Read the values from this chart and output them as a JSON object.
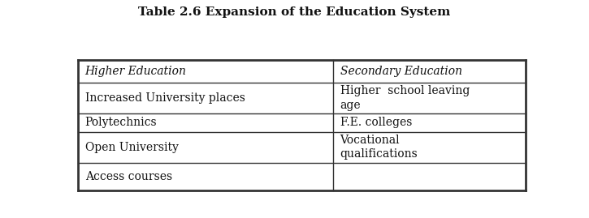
{
  "title": "Table 2.6 Expansion of the Education System",
  "title_fontsize": 11,
  "title_fontweight": "bold",
  "col1_header": "Higher Education",
  "col2_header": "Secondary Education",
  "header_fontsize": 10,
  "rows": [
    [
      "Increased University places",
      "Higher  school leaving\nage"
    ],
    [
      "Polytechnics",
      "F.E. colleges"
    ],
    [
      "Open University",
      "Vocational\nqualifications"
    ],
    [
      "Access courses",
      ""
    ]
  ],
  "cell_fontsize": 10,
  "col_split": 0.57,
  "background_color": "#ffffff",
  "line_color": "#333333",
  "text_color": "#111111",
  "outer_border_lw": 2.0,
  "inner_line_lw": 1.0,
  "col_divider_lw": 1.0
}
